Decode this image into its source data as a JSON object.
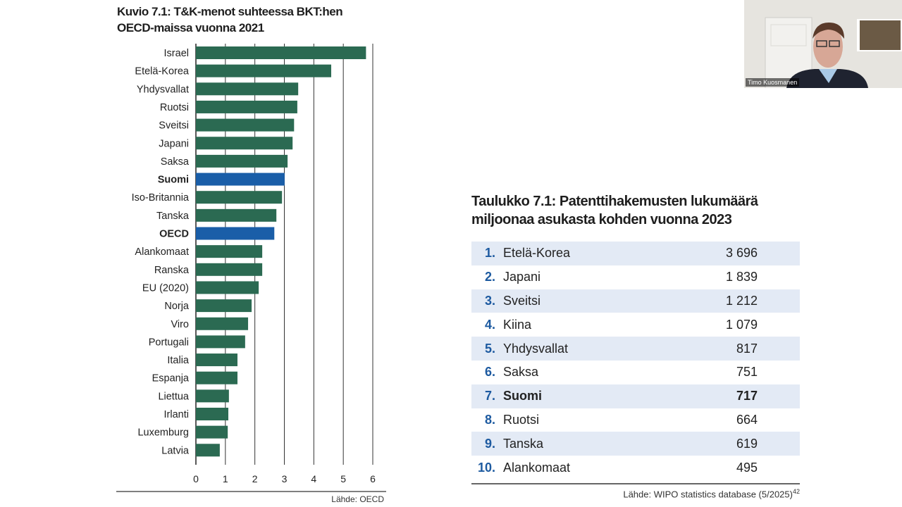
{
  "chart_data": {
    "type": "bar",
    "orientation": "horizontal",
    "title": "Kuvio 7.1: T&K-menot suhteessa BKT:hen OECD-maissa vuonna 2021",
    "title_lines": [
      "Kuvio 7.1: T&K-menot suhteessa BKT:hen",
      "OECD-maissa vuonna 2021"
    ],
    "categories": [
      "Israel",
      "Etelä-Korea",
      "Yhdysvallat",
      "Ruotsi",
      "Sveitsi",
      "Japani",
      "Saksa",
      "Suomi",
      "Iso-Britannia",
      "Tanska",
      "OECD",
      "Alankomaat",
      "Ranska",
      "EU (2020)",
      "Norja",
      "Viro",
      "Portugali",
      "Italia",
      "Espanja",
      "Liettua",
      "Irlanti",
      "Luxemburg",
      "Latvia"
    ],
    "values": [
      5.77,
      4.59,
      3.47,
      3.44,
      3.33,
      3.28,
      3.11,
      3.01,
      2.92,
      2.73,
      2.66,
      2.25,
      2.25,
      2.13,
      1.89,
      1.77,
      1.67,
      1.41,
      1.41,
      1.12,
      1.1,
      1.08,
      0.81
    ],
    "highlighted": [
      "Suomi",
      "OECD"
    ],
    "xlim": [
      0,
      6
    ],
    "xticks": [
      "0",
      "1",
      "2",
      "3",
      "4",
      "5",
      "6"
    ],
    "grid": true,
    "colors": {
      "bar": "#2b6a52",
      "highlight": "#1a5ea8"
    },
    "source": "Lähde: OECD"
  },
  "table": {
    "title_lines": [
      "Taulukko 7.1: Patenttihakemusten lukumäärä",
      "miljoonaa asukasta kohden vuonna 2023"
    ],
    "rows": [
      {
        "rank": "1.",
        "name": "Etelä-Korea",
        "value": "3 696"
      },
      {
        "rank": "2.",
        "name": "Japani",
        "value": "1 839"
      },
      {
        "rank": "3.",
        "name": "Sveitsi",
        "value": "1 212"
      },
      {
        "rank": "4.",
        "name": "Kiina",
        "value": "1 079"
      },
      {
        "rank": "5.",
        "name": "Yhdysvallat",
        "value": "817"
      },
      {
        "rank": "6.",
        "name": "Saksa",
        "value": "751"
      },
      {
        "rank": "7.",
        "name": "Suomi",
        "value": "717",
        "highlight": true
      },
      {
        "rank": "8.",
        "name": "Ruotsi",
        "value": "664"
      },
      {
        "rank": "9.",
        "name": "Tanska",
        "value": "619"
      },
      {
        "rank": "10.",
        "name": "Alankomaat",
        "value": "495"
      }
    ],
    "source": "Lähde: WIPO statistics database (5/2025)",
    "footnote": "42"
  },
  "video": {
    "participant_name": "Timo Kuosmanen"
  }
}
